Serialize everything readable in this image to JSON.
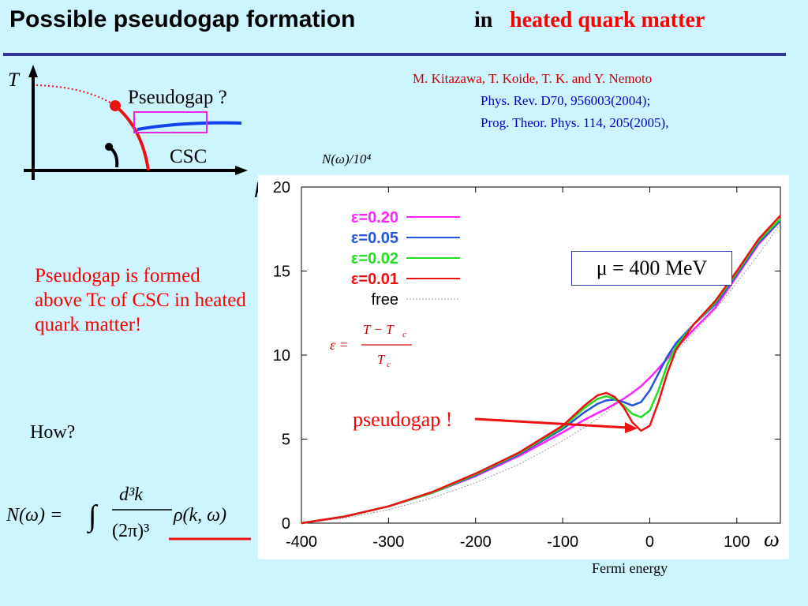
{
  "title": {
    "main": "Possible pseudogap formation",
    "in": "in",
    "highlight": "heated quark matter"
  },
  "reference": {
    "authors": "M. Kitazawa, T. Koide, T. K. and Y. Nemoto",
    "journal1": "Phys. Rev. D70, 956003(2004);",
    "journal2": "Prog. Theor. Phys. 114, 205(2005),"
  },
  "phase_diagram": {
    "t_axis": "T",
    "mu_axis": "μ",
    "pseudogap_label": "Pseudogap ?",
    "csc_label": "CSC"
  },
  "explanation": "Pseudogap is formed above Tc of CSC  in heated quark matter!",
  "how": "How?",
  "plot": {
    "ylabel": "N(ω)/10⁴",
    "mu_value": "μ = 400 MeV",
    "pseudogap_annotation": "pseudogap !",
    "fermi_label": "Fermi energy",
    "omega_label": "ω",
    "epsilon_formula": {
      "lhs": "ε =",
      "numerator": "T − T",
      "denominator": "T",
      "sub": "c"
    }
  },
  "formula": {
    "lhs": "N(ω) =",
    "integral": "∫",
    "numerator": "d³k",
    "denominator": "(2π)³",
    "integrand": "ρ(k, ω)"
  },
  "colors": {
    "eps020": "#ff22ff",
    "eps005": "#2255dd",
    "eps002": "#22dd22",
    "eps001": "#ee1111",
    "free": "#999999",
    "accent_red": "#ff0000",
    "rule": "#333399"
  },
  "chart_data": {
    "type": "line",
    "xlabel": "",
    "ylabel": "N(ω)/10⁴",
    "xlim": [
      -400,
      150
    ],
    "ylim": [
      0,
      20
    ],
    "x_ticks": [
      -400,
      -300,
      -200,
      -100,
      0,
      100
    ],
    "y_ticks": [
      0,
      5,
      10,
      15,
      20
    ],
    "legend_position": "top-left",
    "x": [
      -400,
      -350,
      -300,
      -250,
      -200,
      -150,
      -100,
      -75,
      -60,
      -50,
      -40,
      -30,
      -20,
      -10,
      0,
      10,
      20,
      30,
      50,
      75,
      100,
      125,
      150
    ],
    "series": [
      {
        "name": "ε=0.20",
        "color": "#ff22ff",
        "values": [
          0,
          0.4,
          1.0,
          1.8,
          2.8,
          4.0,
          5.4,
          6.15,
          6.55,
          6.8,
          7.1,
          7.4,
          7.75,
          8.15,
          8.65,
          9.2,
          9.8,
          10.4,
          11.5,
          12.8,
          14.7,
          16.6,
          18.0
        ]
      },
      {
        "name": "ε=0.05",
        "color": "#2255dd",
        "values": [
          0,
          0.4,
          1.0,
          1.8,
          2.85,
          4.1,
          5.6,
          6.6,
          7.1,
          7.3,
          7.35,
          7.2,
          7.0,
          7.2,
          7.9,
          8.9,
          9.9,
          10.7,
          11.8,
          13.0,
          14.8,
          16.7,
          18.0
        ]
      },
      {
        "name": "ε=0.02",
        "color": "#22dd22",
        "values": [
          0,
          0.4,
          1.0,
          1.8,
          2.9,
          4.15,
          5.7,
          6.85,
          7.4,
          7.55,
          7.4,
          7.0,
          6.5,
          6.3,
          6.7,
          7.9,
          9.4,
          10.5,
          11.8,
          13.1,
          14.9,
          16.8,
          18.1
        ]
      },
      {
        "name": "ε=0.01",
        "color": "#ee1111",
        "values": [
          0,
          0.4,
          1.0,
          1.85,
          2.95,
          4.2,
          5.8,
          7.0,
          7.6,
          7.75,
          7.5,
          6.9,
          6.0,
          5.5,
          5.8,
          7.2,
          8.9,
          10.3,
          11.8,
          13.2,
          15.0,
          16.9,
          18.3
        ]
      },
      {
        "name": "free",
        "color": "#999999",
        "values": [
          0,
          0.3,
          0.8,
          1.5,
          2.4,
          3.5,
          4.9,
          5.7,
          6.2,
          6.6,
          7.0,
          7.4,
          7.8,
          8.2,
          8.7,
          9.2,
          9.7,
          10.2,
          11.3,
          12.7,
          14.3,
          16.0,
          17.8
        ]
      }
    ]
  }
}
